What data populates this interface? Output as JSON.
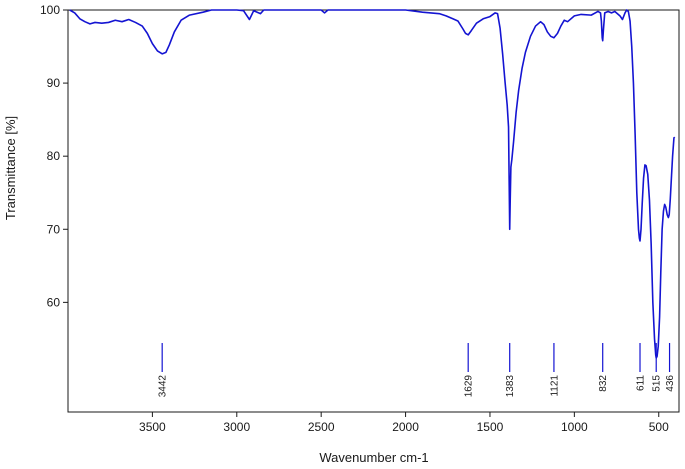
{
  "chart_data": {
    "type": "line",
    "title": "",
    "xlabel": "Wavenumber cm-1",
    "ylabel": "Transmittance [%]",
    "x_reversed": true,
    "xlim": [
      4000,
      380
    ],
    "ylim": [
      45,
      100
    ],
    "x_ticks": [
      3500,
      3000,
      2500,
      2000,
      1500,
      1000,
      500
    ],
    "y_ticks": [
      60,
      70,
      80,
      90,
      100
    ],
    "grid": false,
    "legend": "none",
    "series": [
      {
        "color": "#1414d2",
        "points": [
          [
            3990,
            100
          ],
          [
            3960,
            99.6
          ],
          [
            3930,
            98.8
          ],
          [
            3900,
            98.4
          ],
          [
            3870,
            98.1
          ],
          [
            3840,
            98.3
          ],
          [
            3800,
            98.2
          ],
          [
            3760,
            98.3
          ],
          [
            3720,
            98.6
          ],
          [
            3680,
            98.4
          ],
          [
            3640,
            98.7
          ],
          [
            3600,
            98.3
          ],
          [
            3560,
            97.8
          ],
          [
            3530,
            96.8
          ],
          [
            3500,
            95.4
          ],
          [
            3470,
            94.4
          ],
          [
            3442,
            94.0
          ],
          [
            3420,
            94.2
          ],
          [
            3400,
            95.2
          ],
          [
            3370,
            97.0
          ],
          [
            3330,
            98.6
          ],
          [
            3280,
            99.3
          ],
          [
            3200,
            99.7
          ],
          [
            3150,
            100
          ],
          [
            3000,
            100
          ],
          [
            2960,
            99.9
          ],
          [
            2925,
            98.7
          ],
          [
            2900,
            99.9
          ],
          [
            2860,
            99.5
          ],
          [
            2840,
            100
          ],
          [
            2500,
            100
          ],
          [
            2480,
            99.6
          ],
          [
            2460,
            100
          ],
          [
            2000,
            100
          ],
          [
            1900,
            99.7
          ],
          [
            1800,
            99.5
          ],
          [
            1760,
            99.2
          ],
          [
            1720,
            98.8
          ],
          [
            1690,
            98.5
          ],
          [
            1660,
            97.4
          ],
          [
            1645,
            96.8
          ],
          [
            1629,
            96.6
          ],
          [
            1610,
            97.2
          ],
          [
            1580,
            98.2
          ],
          [
            1540,
            98.8
          ],
          [
            1500,
            99.1
          ],
          [
            1470,
            99.6
          ],
          [
            1455,
            99.5
          ],
          [
            1440,
            97.5
          ],
          [
            1425,
            94.0
          ],
          [
            1410,
            90.0
          ],
          [
            1398,
            87.0
          ],
          [
            1390,
            84.0
          ],
          [
            1386,
            76.0
          ],
          [
            1383,
            70.0
          ],
          [
            1380,
            74.0
          ],
          [
            1376,
            78.5
          ],
          [
            1370,
            79.6
          ],
          [
            1360,
            82.0
          ],
          [
            1345,
            86.0
          ],
          [
            1330,
            89.0
          ],
          [
            1310,
            92.0
          ],
          [
            1290,
            94.2
          ],
          [
            1260,
            96.4
          ],
          [
            1230,
            97.8
          ],
          [
            1200,
            98.4
          ],
          [
            1180,
            98.0
          ],
          [
            1160,
            97.0
          ],
          [
            1140,
            96.4
          ],
          [
            1121,
            96.2
          ],
          [
            1100,
            96.8
          ],
          [
            1080,
            97.8
          ],
          [
            1060,
            98.6
          ],
          [
            1040,
            98.4
          ],
          [
            1000,
            99.2
          ],
          [
            960,
            99.4
          ],
          [
            900,
            99.3
          ],
          [
            860,
            99.8
          ],
          [
            845,
            99.6
          ],
          [
            840,
            98.5
          ],
          [
            835,
            96.2
          ],
          [
            832,
            95.8
          ],
          [
            828,
            97.2
          ],
          [
            820,
            99.6
          ],
          [
            800,
            99.8
          ],
          [
            780,
            99.6
          ],
          [
            760,
            99.8
          ],
          [
            730,
            99.2
          ],
          [
            715,
            98.7
          ],
          [
            700,
            99.6
          ],
          [
            690,
            100
          ],
          [
            680,
            99.8
          ],
          [
            670,
            98.5
          ],
          [
            660,
            95.0
          ],
          [
            650,
            90.0
          ],
          [
            640,
            83.0
          ],
          [
            630,
            75.0
          ],
          [
            620,
            70.0
          ],
          [
            615,
            68.8
          ],
          [
            611,
            68.4
          ],
          [
            605,
            70.0
          ],
          [
            598,
            73.5
          ],
          [
            590,
            77.0
          ],
          [
            582,
            78.8
          ],
          [
            575,
            78.7
          ],
          [
            565,
            77.5
          ],
          [
            555,
            74.0
          ],
          [
            545,
            68.0
          ],
          [
            535,
            60.0
          ],
          [
            525,
            55.0
          ],
          [
            518,
            52.8
          ],
          [
            515,
            52.4
          ],
          [
            510,
            52.6
          ],
          [
            503,
            54.0
          ],
          [
            495,
            58.0
          ],
          [
            488,
            64.0
          ],
          [
            480,
            70.0
          ],
          [
            472,
            72.5
          ],
          [
            465,
            73.4
          ],
          [
            458,
            73.0
          ],
          [
            450,
            72.0
          ],
          [
            443,
            71.6
          ],
          [
            438,
            72.0
          ],
          [
            432,
            74.0
          ],
          [
            425,
            77.0
          ],
          [
            418,
            80.0
          ],
          [
            410,
            82.5
          ],
          [
            405,
            82.6
          ]
        ]
      }
    ],
    "peak_labels": [
      "3442",
      "1629",
      "1383",
      "1121",
      "832",
      "611",
      "515",
      "436"
    ],
    "peak_positions": [
      3442,
      1629,
      1383,
      1121,
      832,
      611,
      515,
      436
    ]
  }
}
